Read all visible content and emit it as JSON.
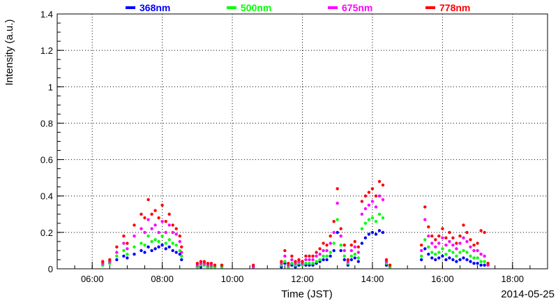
{
  "chart_data": {
    "type": "scatter",
    "xlabel": "Time (JST)",
    "ylabel": "Intensity (a.u.)",
    "date": "2014-05-25",
    "xlim": [
      "05:00",
      "19:00"
    ],
    "ylim": [
      0,
      1.4
    ],
    "x_ticks": [
      "06:00",
      "08:00",
      "10:00",
      "12:00",
      "14:00",
      "16:00",
      "18:00"
    ],
    "y_ticks": [
      "0",
      "0.2",
      "0.4",
      "0.6",
      "0.8",
      "1",
      "1.2",
      "1.4"
    ],
    "grid": true,
    "legend_position": "top",
    "time_hours": [
      6.3,
      6.5,
      6.7,
      6.9,
      7.0,
      7.2,
      7.4,
      7.5,
      7.6,
      7.7,
      7.8,
      7.9,
      8.0,
      8.1,
      8.2,
      8.3,
      8.4,
      8.5,
      8.55,
      9.0,
      9.1,
      9.2,
      9.3,
      9.4,
      9.5,
      9.7,
      10.6,
      11.4,
      11.5,
      11.6,
      11.7,
      11.8,
      11.9,
      12.0,
      12.1,
      12.2,
      12.3,
      12.4,
      12.5,
      12.6,
      12.7,
      12.8,
      12.9,
      13.0,
      13.1,
      13.2,
      13.3,
      13.4,
      13.5,
      13.6,
      13.7,
      13.8,
      13.9,
      14.0,
      14.1,
      14.2,
      14.3,
      14.4,
      14.5,
      15.4,
      15.5,
      15.6,
      15.7,
      15.8,
      15.9,
      16.0,
      16.1,
      16.2,
      16.3,
      16.4,
      16.5,
      16.6,
      16.7,
      16.8,
      16.9,
      17.0,
      17.1,
      17.2,
      17.3
    ],
    "series": [
      {
        "name": "368nm",
        "color": "#0000ff",
        "values": [
          0.02,
          0.03,
          0.05,
          0.07,
          0.06,
          0.08,
          0.1,
          0.09,
          0.12,
          0.1,
          0.11,
          0.12,
          0.13,
          0.11,
          0.12,
          0.1,
          0.09,
          0.08,
          0.05,
          0.01,
          0.01,
          0.02,
          0.01,
          0.01,
          0.01,
          0.01,
          0.01,
          0.01,
          0.03,
          0.01,
          0.02,
          0.01,
          0.02,
          0.02,
          0.02,
          0.02,
          0.02,
          0.03,
          0.04,
          0.05,
          0.05,
          0.07,
          0.1,
          0.2,
          0.1,
          0.05,
          0.02,
          0.05,
          0.06,
          0.04,
          0.14,
          0.17,
          0.19,
          0.2,
          0.19,
          0.21,
          0.2,
          0.02,
          0.01,
          0.05,
          0.11,
          0.08,
          0.06,
          0.05,
          0.06,
          0.07,
          0.05,
          0.06,
          0.05,
          0.04,
          0.05,
          0.06,
          0.05,
          0.04,
          0.03,
          0.03,
          0.02,
          0.02,
          0.02
        ]
      },
      {
        "name": "500nm",
        "color": "#00ff00",
        "values": [
          0.02,
          0.03,
          0.07,
          0.1,
          0.08,
          0.12,
          0.14,
          0.13,
          0.18,
          0.15,
          0.16,
          0.15,
          0.18,
          0.14,
          0.16,
          0.14,
          0.13,
          0.1,
          0.07,
          0.01,
          0.02,
          0.02,
          0.01,
          0.01,
          0.01,
          0.01,
          0.01,
          0.02,
          0.04,
          0.01,
          0.03,
          0.02,
          0.03,
          0.02,
          0.03,
          0.03,
          0.03,
          0.04,
          0.05,
          0.07,
          0.07,
          0.09,
          0.14,
          0.27,
          0.13,
          0.07,
          0.03,
          0.07,
          0.08,
          0.06,
          0.22,
          0.25,
          0.27,
          0.28,
          0.26,
          0.3,
          0.28,
          0.03,
          0.01,
          0.07,
          0.16,
          0.12,
          0.09,
          0.08,
          0.09,
          0.11,
          0.08,
          0.1,
          0.09,
          0.07,
          0.09,
          0.1,
          0.09,
          0.07,
          0.06,
          0.06,
          0.04,
          0.04,
          0.02
        ]
      },
      {
        "name": "675nm",
        "color": "#ff00ff",
        "values": [
          0.03,
          0.04,
          0.09,
          0.14,
          0.11,
          0.18,
          0.22,
          0.2,
          0.27,
          0.22,
          0.24,
          0.2,
          0.26,
          0.2,
          0.24,
          0.2,
          0.19,
          0.15,
          0.09,
          0.02,
          0.03,
          0.03,
          0.02,
          0.02,
          0.02,
          0.02,
          0.01,
          0.03,
          0.07,
          0.02,
          0.05,
          0.03,
          0.04,
          0.03,
          0.05,
          0.05,
          0.05,
          0.07,
          0.08,
          0.1,
          0.1,
          0.14,
          0.2,
          0.36,
          0.18,
          0.1,
          0.04,
          0.1,
          0.12,
          0.09,
          0.3,
          0.33,
          0.35,
          0.37,
          0.34,
          0.4,
          0.38,
          0.04,
          0.02,
          0.1,
          0.27,
          0.18,
          0.14,
          0.12,
          0.14,
          0.17,
          0.13,
          0.15,
          0.13,
          0.11,
          0.14,
          0.17,
          0.15,
          0.12,
          0.1,
          0.1,
          0.08,
          0.07,
          0.02
        ]
      },
      {
        "name": "778nm",
        "color": "#ff0000",
        "values": [
          0.04,
          0.05,
          0.12,
          0.18,
          0.14,
          0.24,
          0.3,
          0.28,
          0.38,
          0.3,
          0.32,
          0.28,
          0.35,
          0.26,
          0.3,
          0.24,
          0.22,
          0.18,
          0.12,
          0.03,
          0.04,
          0.04,
          0.03,
          0.03,
          0.02,
          0.02,
          0.02,
          0.04,
          0.1,
          0.03,
          0.07,
          0.04,
          0.05,
          0.04,
          0.07,
          0.07,
          0.07,
          0.09,
          0.11,
          0.14,
          0.13,
          0.18,
          0.26,
          0.44,
          0.22,
          0.13,
          0.05,
          0.13,
          0.15,
          0.12,
          0.37,
          0.4,
          0.42,
          0.44,
          0.4,
          0.48,
          0.46,
          0.05,
          0.02,
          0.13,
          0.34,
          0.23,
          0.18,
          0.16,
          0.18,
          0.22,
          0.17,
          0.2,
          0.17,
          0.14,
          0.18,
          0.24,
          0.2,
          0.16,
          0.13,
          0.14,
          0.21,
          0.2,
          0.03
        ]
      }
    ]
  }
}
